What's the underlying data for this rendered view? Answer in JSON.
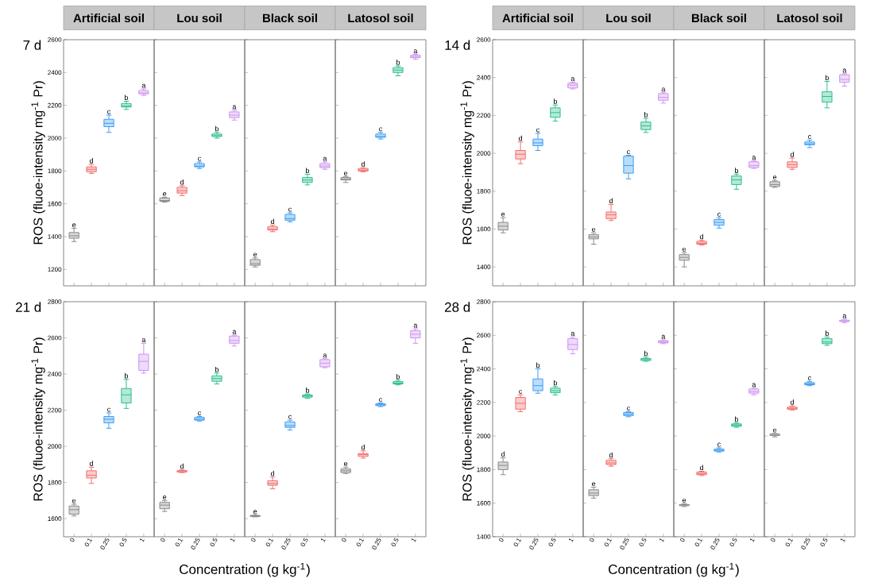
{
  "chart_data": [
    {
      "type": "box",
      "title": "Artificial soil",
      "ylabel": "ROS (fluoe-intensity mg$^{-1}$ Pr)",
      "tick_labels": "y",
      "categories": [
        "0",
        "0.1",
        "0.25",
        "0.5",
        "1"
      ],
      "colors": [
        "#8c8c8c",
        "#f26d6d",
        "#3d9df2",
        "#2dbf8a",
        "#cf94f0"
      ],
      "ylim": [
        1100,
        2600
      ],
      "yticks": [
        1200,
        1400,
        1600,
        1800,
        2000,
        2200,
        2400,
        2600
      ],
      "boxes": [
        {
          "low": 1370,
          "q1": 1390,
          "median": 1405,
          "q3": 1425,
          "high": 1450
        },
        {
          "low": 1785,
          "q1": 1795,
          "median": 1810,
          "q3": 1825,
          "high": 1840
        },
        {
          "low": 2035,
          "q1": 2070,
          "median": 2090,
          "q3": 2115,
          "high": 2140
        },
        {
          "low": 2175,
          "q1": 2190,
          "median": 2195,
          "q3": 2210,
          "high": 2225
        },
        {
          "low": 2260,
          "q1": 2270,
          "median": 2275,
          "q3": 2290,
          "high": 2300
        }
      ],
      "annotations": [
        "7 d",
        {
          "text": "e",
          "x": "0",
          "y": 1450
        },
        {
          "text": "d",
          "x": "0.1",
          "y": 1840
        },
        {
          "text": "c",
          "x": "0.25",
          "y": 2140
        },
        {
          "text": "b",
          "x": "0.5",
          "y": 2225
        },
        {
          "text": "a",
          "x": "1",
          "y": 2300
        }
      ]
    },
    {
      "type": "box",
      "title": "Lou soil",
      "tick_labels": false,
      "categories": [
        "0",
        "0.1",
        "0.25",
        "0.5",
        "1"
      ],
      "colors": [
        "#8c8c8c",
        "#f26d6d",
        "#3d9df2",
        "#2dbf8a",
        "#cf94f0"
      ],
      "ylim": [
        1100,
        2600
      ],
      "yticks": [
        1200,
        1400,
        1600,
        1800,
        2000,
        2200,
        2400,
        2600
      ],
      "boxes": [
        {
          "low": 1610,
          "q1": 1615,
          "median": 1620,
          "q3": 1635,
          "high": 1640
        },
        {
          "low": 1650,
          "q1": 1665,
          "median": 1680,
          "q3": 1700,
          "high": 1710
        },
        {
          "low": 1815,
          "q1": 1825,
          "median": 1830,
          "q3": 1845,
          "high": 1855
        },
        {
          "low": 2000,
          "q1": 2010,
          "median": 2015,
          "q3": 2025,
          "high": 2035
        },
        {
          "low": 2110,
          "q1": 2125,
          "median": 2140,
          "q3": 2160,
          "high": 2170
        }
      ],
      "annotations": [
        {
          "text": "e",
          "x": "0",
          "y": 1640
        },
        {
          "text": "d",
          "x": "0.1",
          "y": 1710
        },
        {
          "text": "c",
          "x": "0.25",
          "y": 1855
        },
        {
          "text": "b",
          "x": "0.5",
          "y": 2035
        },
        {
          "text": "a",
          "x": "1",
          "y": 2170
        }
      ]
    },
    {
      "type": "box",
      "title": "Black soil",
      "tick_labels": false,
      "categories": [
        "0",
        "0.1",
        "0.25",
        "0.5",
        "1"
      ],
      "colors": [
        "#8c8c8c",
        "#f26d6d",
        "#3d9df2",
        "#2dbf8a",
        "#cf94f0"
      ],
      "ylim": [
        1100,
        2600
      ],
      "yticks": [
        1200,
        1400,
        1600,
        1800,
        2000,
        2200,
        2400,
        2600
      ],
      "boxes": [
        {
          "low": 1215,
          "q1": 1225,
          "median": 1235,
          "q3": 1260,
          "high": 1270
        },
        {
          "low": 1430,
          "q1": 1440,
          "median": 1445,
          "q3": 1460,
          "high": 1470
        },
        {
          "low": 1490,
          "q1": 1500,
          "median": 1510,
          "q3": 1535,
          "high": 1545
        },
        {
          "low": 1715,
          "q1": 1730,
          "median": 1745,
          "q3": 1760,
          "high": 1780
        },
        {
          "low": 1810,
          "q1": 1820,
          "median": 1830,
          "q3": 1845,
          "high": 1855
        }
      ],
      "annotations": [
        {
          "text": "e",
          "x": "0",
          "y": 1270
        },
        {
          "text": "d",
          "x": "0.1",
          "y": 1470
        },
        {
          "text": "c",
          "x": "0.25",
          "y": 1545
        },
        {
          "text": "b",
          "x": "0.5",
          "y": 1780
        },
        {
          "text": "a",
          "x": "1",
          "y": 1855
        }
      ]
    },
    {
      "type": "box",
      "title": "Latosol soil",
      "tick_labels": false,
      "categories": [
        "0",
        "0.1",
        "0.25",
        "0.5",
        "1"
      ],
      "colors": [
        "#8c8c8c",
        "#f26d6d",
        "#3d9df2",
        "#2dbf8a",
        "#cf94f0"
      ],
      "ylim": [
        1100,
        2600
      ],
      "yticks": [
        1200,
        1400,
        1600,
        1800,
        2000,
        2200,
        2400,
        2600
      ],
      "boxes": [
        {
          "low": 1730,
          "q1": 1745,
          "median": 1750,
          "q3": 1760,
          "high": 1765
        },
        {
          "low": 1795,
          "q1": 1800,
          "median": 1805,
          "q3": 1815,
          "high": 1820
        },
        {
          "low": 1995,
          "q1": 2005,
          "median": 2010,
          "q3": 2025,
          "high": 2035
        },
        {
          "low": 2380,
          "q1": 2400,
          "median": 2415,
          "q3": 2430,
          "high": 2440
        },
        {
          "low": 2480,
          "q1": 2490,
          "median": 2495,
          "q3": 2505,
          "high": 2510
        }
      ],
      "annotations": [
        {
          "text": "e",
          "x": "0",
          "y": 1765
        },
        {
          "text": "d",
          "x": "0.1",
          "y": 1820
        },
        {
          "text": "c",
          "x": "0.25",
          "y": 2035
        },
        {
          "text": "b",
          "x": "0.5",
          "y": 2440
        },
        {
          "text": "a",
          "x": "1",
          "y": 2510
        }
      ]
    },
    {
      "type": "box",
      "title": "Artificial soil",
      "ylabel": "ROS (fluoe-intensity mg$^{-1}$ Pr)",
      "tick_labels": "y",
      "categories": [
        "0",
        "0.1",
        "0.25",
        "0.5",
        "1"
      ],
      "colors": [
        "#8c8c8c",
        "#f26d6d",
        "#3d9df2",
        "#2dbf8a",
        "#cf94f0"
      ],
      "ylim": [
        1300,
        2600
      ],
      "yticks": [
        1400,
        1600,
        1800,
        2000,
        2200,
        2400,
        2600
      ],
      "boxes": [
        {
          "low": 1580,
          "q1": 1595,
          "median": 1615,
          "q3": 1635,
          "high": 1660
        },
        {
          "low": 1945,
          "q1": 1970,
          "median": 1995,
          "q3": 2015,
          "high": 2060
        },
        {
          "low": 2015,
          "q1": 2040,
          "median": 2055,
          "q3": 2075,
          "high": 2105
        },
        {
          "low": 2170,
          "q1": 2190,
          "median": 2215,
          "q3": 2240,
          "high": 2255
        },
        {
          "low": 2340,
          "q1": 2345,
          "median": 2360,
          "q3": 2370,
          "high": 2375
        }
      ],
      "annotations": [
        "14 d",
        {
          "text": "e",
          "x": "0",
          "y": 1660
        },
        {
          "text": "d",
          "x": "0.1",
          "y": 2060
        },
        {
          "text": "c",
          "x": "0.25",
          "y": 2105
        },
        {
          "text": "b",
          "x": "0.5",
          "y": 2255
        },
        {
          "text": "a",
          "x": "1",
          "y": 2375
        }
      ]
    },
    {
      "type": "box",
      "title": "Lou soil",
      "tick_labels": false,
      "categories": [
        "0",
        "0.1",
        "0.25",
        "0.5",
        "1"
      ],
      "colors": [
        "#8c8c8c",
        "#f26d6d",
        "#3d9df2",
        "#2dbf8a",
        "#cf94f0"
      ],
      "ylim": [
        1300,
        2600
      ],
      "yticks": [
        1400,
        1600,
        1800,
        2000,
        2200,
        2400,
        2600
      ],
      "boxes": [
        {
          "low": 1520,
          "q1": 1548,
          "median": 1558,
          "q3": 1570,
          "high": 1580
        },
        {
          "low": 1645,
          "q1": 1655,
          "median": 1675,
          "q3": 1690,
          "high": 1730
        },
        {
          "low": 1865,
          "q1": 1895,
          "median": 1935,
          "q3": 1985,
          "high": 1990
        },
        {
          "low": 2110,
          "q1": 2125,
          "median": 2145,
          "q3": 2165,
          "high": 2185
        },
        {
          "low": 2265,
          "q1": 2280,
          "median": 2295,
          "q3": 2315,
          "high": 2320
        }
      ],
      "annotations": [
        {
          "text": "e",
          "x": "0",
          "y": 1580
        },
        {
          "text": "d",
          "x": "0.1",
          "y": 1730
        },
        {
          "text": "c",
          "x": "0.25",
          "y": 1990
        },
        {
          "text": "b",
          "x": "0.5",
          "y": 2185
        },
        {
          "text": "a",
          "x": "1",
          "y": 2320
        }
      ]
    },
    {
      "type": "box",
      "title": "Black soil",
      "tick_labels": false,
      "categories": [
        "0",
        "0.1",
        "0.25",
        "0.5",
        "1"
      ],
      "colors": [
        "#8c8c8c",
        "#f26d6d",
        "#3d9df2",
        "#2dbf8a",
        "#cf94f0"
      ],
      "ylim": [
        1300,
        2600
      ],
      "yticks": [
        1400,
        1600,
        1800,
        2000,
        2200,
        2400,
        2600
      ],
      "boxes": [
        {
          "low": 1400,
          "q1": 1435,
          "median": 1450,
          "q3": 1465,
          "high": 1475
        },
        {
          "low": 1515,
          "q1": 1520,
          "median": 1525,
          "q3": 1535,
          "high": 1540
        },
        {
          "low": 1605,
          "q1": 1620,
          "median": 1635,
          "q3": 1650,
          "high": 1660
        },
        {
          "low": 1810,
          "q1": 1835,
          "median": 1860,
          "q3": 1880,
          "high": 1890
        },
        {
          "low": 1920,
          "q1": 1925,
          "median": 1935,
          "q3": 1955,
          "high": 1960
        }
      ],
      "annotations": [
        {
          "text": "e",
          "x": "0",
          "y": 1475
        },
        {
          "text": "d",
          "x": "0.1",
          "y": 1540
        },
        {
          "text": "c",
          "x": "0.25",
          "y": 1660
        },
        {
          "text": "b",
          "x": "0.5",
          "y": 1890
        },
        {
          "text": "a",
          "x": "1",
          "y": 1960
        }
      ]
    },
    {
      "type": "box",
      "title": "Latosol soil",
      "tick_labels": false,
      "categories": [
        "0",
        "0.1",
        "0.25",
        "0.5",
        "1"
      ],
      "colors": [
        "#8c8c8c",
        "#f26d6d",
        "#3d9df2",
        "#2dbf8a",
        "#cf94f0"
      ],
      "ylim": [
        1300,
        2600
      ],
      "yticks": [
        1400,
        1600,
        1800,
        2000,
        2200,
        2400,
        2600
      ],
      "boxes": [
        {
          "low": 1820,
          "q1": 1825,
          "median": 1835,
          "q3": 1850,
          "high": 1855
        },
        {
          "low": 1915,
          "q1": 1925,
          "median": 1940,
          "q3": 1955,
          "high": 1975
        },
        {
          "low": 2030,
          "q1": 2045,
          "median": 2050,
          "q3": 2060,
          "high": 2070
        },
        {
          "low": 2240,
          "q1": 2270,
          "median": 2300,
          "q3": 2325,
          "high": 2380
        },
        {
          "low": 2355,
          "q1": 2375,
          "median": 2390,
          "q3": 2415,
          "high": 2420
        }
      ],
      "annotations": [
        {
          "text": "e",
          "x": "0",
          "y": 1855
        },
        {
          "text": "d",
          "x": "0.1",
          "y": 1975
        },
        {
          "text": "c",
          "x": "0.25",
          "y": 2070
        },
        {
          "text": "b",
          "x": "0.5",
          "y": 2380
        },
        {
          "text": "a",
          "x": "1",
          "y": 2420
        }
      ]
    },
    {
      "type": "box",
      "ylabel": "ROS (fluoe-intensity mg$^{-1}$ Pr)",
      "xlabel": "Concentration (g kg$^{-1}$)",
      "categories": [
        "0",
        "0.1",
        "0.25",
        "0.5",
        "1"
      ],
      "colors": [
        "#8c8c8c",
        "#f26d6d",
        "#3d9df2",
        "#2dbf8a",
        "#cf94f0"
      ],
      "ylim": [
        1500,
        2800
      ],
      "yticks": [
        1600,
        1800,
        2000,
        2200,
        2400,
        2600,
        2800
      ],
      "boxes": [
        {
          "low": 1615,
          "q1": 1625,
          "median": 1650,
          "q3": 1670,
          "high": 1680
        },
        {
          "low": 1795,
          "q1": 1825,
          "median": 1840,
          "q3": 1865,
          "high": 1885
        },
        {
          "low": 2100,
          "q1": 2130,
          "median": 2150,
          "q3": 2165,
          "high": 2185
        },
        {
          "low": 2210,
          "q1": 2240,
          "median": 2285,
          "q3": 2320,
          "high": 2370
        },
        {
          "low": 2405,
          "q1": 2420,
          "median": 2470,
          "q3": 2510,
          "high": 2570
        }
      ],
      "annotations": [
        "21 d",
        {
          "text": "e",
          "x": "0",
          "y": 1680
        },
        {
          "text": "d",
          "x": "0.1",
          "y": 1885
        },
        {
          "text": "c",
          "x": "0.25",
          "y": 2185
        },
        {
          "text": "b",
          "x": "0.5",
          "y": 2370
        },
        {
          "text": "a",
          "x": "1",
          "y": 2570
        }
      ]
    },
    {
      "type": "box",
      "tick_labels": "x",
      "categories": [
        "0",
        "0.1",
        "0.25",
        "0.5",
        "1"
      ],
      "colors": [
        "#8c8c8c",
        "#f26d6d",
        "#3d9df2",
        "#2dbf8a",
        "#cf94f0"
      ],
      "ylim": [
        1500,
        2800
      ],
      "yticks": [
        1600,
        1800,
        2000,
        2200,
        2400,
        2600,
        2800
      ],
      "boxes": [
        {
          "low": 1640,
          "q1": 1655,
          "median": 1675,
          "q3": 1690,
          "high": 1700
        },
        {
          "low": 1855,
          "q1": 1858,
          "median": 1860,
          "q3": 1866,
          "high": 1870
        },
        {
          "low": 2140,
          "q1": 2145,
          "median": 2150,
          "q3": 2160,
          "high": 2165
        },
        {
          "low": 2345,
          "q1": 2360,
          "median": 2375,
          "q3": 2390,
          "high": 2405
        },
        {
          "low": 2555,
          "q1": 2570,
          "median": 2585,
          "q3": 2610,
          "high": 2615
        }
      ],
      "annotations": [
        {
          "text": "e",
          "x": "0",
          "y": 1700
        },
        {
          "text": "d",
          "x": "0.1",
          "y": 1870
        },
        {
          "text": "c",
          "x": "0.25",
          "y": 2165
        },
        {
          "text": "b",
          "x": "0.5",
          "y": 2405
        },
        {
          "text": "a",
          "x": "1",
          "y": 2615
        }
      ]
    },
    {
      "type": "box",
      "tick_labels": "x",
      "categories": [
        "0",
        "0.1",
        "0.25",
        "0.5",
        "1"
      ],
      "colors": [
        "#8c8c8c",
        "#f26d6d",
        "#3d9df2",
        "#2dbf8a",
        "#cf94f0"
      ],
      "ylim": [
        1500,
        2800
      ],
      "yticks": [
        1600,
        1800,
        2000,
        2200,
        2400,
        2600,
        2800
      ],
      "boxes": [
        {
          "low": 1610,
          "q1": 1612,
          "median": 1615,
          "q3": 1618,
          "high": 1620
        },
        {
          "low": 1765,
          "q1": 1785,
          "median": 1795,
          "q3": 1810,
          "high": 1830
        },
        {
          "low": 2090,
          "q1": 2105,
          "median": 2115,
          "q3": 2135,
          "high": 2145
        },
        {
          "low": 2265,
          "q1": 2272,
          "median": 2278,
          "q3": 2284,
          "high": 2290
        },
        {
          "low": 2435,
          "q1": 2440,
          "median": 2460,
          "q3": 2480,
          "high": 2485
        }
      ],
      "annotations": [
        {
          "text": "e",
          "x": "0",
          "y": 1620
        },
        {
          "text": "d",
          "x": "0.1",
          "y": 1830
        },
        {
          "text": "c",
          "x": "0.25",
          "y": 2145
        },
        {
          "text": "b",
          "x": "0.5",
          "y": 2290
        },
        {
          "text": "a",
          "x": "1",
          "y": 2485
        }
      ]
    },
    {
      "type": "box",
      "tick_labels": "x",
      "categories": [
        "0",
        "0.1",
        "0.25",
        "0.5",
        "1"
      ],
      "colors": [
        "#8c8c8c",
        "#f26d6d",
        "#3d9df2",
        "#2dbf8a",
        "#cf94f0"
      ],
      "ylim": [
        1500,
        2800
      ],
      "yticks": [
        1600,
        1800,
        2000,
        2200,
        2400,
        2600,
        2800
      ],
      "boxes": [
        {
          "low": 1850,
          "q1": 1855,
          "median": 1865,
          "q3": 1875,
          "high": 1885
        },
        {
          "low": 1935,
          "q1": 1945,
          "median": 1955,
          "q3": 1960,
          "high": 1975
        },
        {
          "low": 2220,
          "q1": 2225,
          "median": 2230,
          "q3": 2235,
          "high": 2240
        },
        {
          "low": 2340,
          "q1": 2345,
          "median": 2350,
          "q3": 2358,
          "high": 2365
        },
        {
          "low": 2570,
          "q1": 2600,
          "median": 2620,
          "q3": 2640,
          "high": 2650
        }
      ],
      "annotations": [
        {
          "text": "e",
          "x": "0",
          "y": 1885
        },
        {
          "text": "d",
          "x": "0.1",
          "y": 1975
        },
        {
          "text": "c",
          "x": "0.25",
          "y": 2240
        },
        {
          "text": "b",
          "x": "0.5",
          "y": 2365
        },
        {
          "text": "a",
          "x": "1",
          "y": 2650
        }
      ]
    },
    {
      "type": "box",
      "ylabel": "ROS (fluoe-intensity mg$^{-1}$ Pr)",
      "xlabel": "Concentration (g kg$^{-1}$)",
      "categories": [
        "0",
        "0.1",
        "0.25",
        "0.5",
        "1"
      ],
      "colors": [
        "#8c8c8c",
        "#f26d6d",
        "#3d9df2",
        "#2dbf8a",
        "#cf94f0"
      ],
      "ylim": [
        1400,
        2800
      ],
      "yticks": [
        1400,
        1600,
        1800,
        2000,
        2200,
        2400,
        2600,
        2800
      ],
      "boxes": [
        {
          "low": 1770,
          "q1": 1800,
          "median": 1825,
          "q3": 1845,
          "high": 1870
        },
        {
          "low": 2145,
          "q1": 2160,
          "median": 2195,
          "q3": 2230,
          "high": 2245
        },
        {
          "low": 2255,
          "q1": 2270,
          "median": 2300,
          "q3": 2340,
          "high": 2400
        },
        {
          "low": 2245,
          "q1": 2258,
          "median": 2270,
          "q3": 2285,
          "high": 2295
        },
        {
          "low": 2490,
          "q1": 2515,
          "median": 2545,
          "q3": 2580,
          "high": 2590
        }
      ],
      "annotations": [
        "28 d",
        {
          "text": "d",
          "x": "0",
          "y": 1870
        },
        {
          "text": "c",
          "x": "0.1",
          "y": 2245
        },
        {
          "text": "b",
          "x": "0.25",
          "y": 2400
        },
        {
          "text": "b",
          "x": "0.5",
          "y": 2295
        },
        {
          "text": "a",
          "x": "1",
          "y": 2590
        }
      ]
    },
    {
      "type": "box",
      "tick_labels": "x",
      "categories": [
        "0",
        "0.1",
        "0.25",
        "0.5",
        "1"
      ],
      "colors": [
        "#8c8c8c",
        "#f26d6d",
        "#3d9df2",
        "#2dbf8a",
        "#cf94f0"
      ],
      "ylim": [
        1400,
        2800
      ],
      "yticks": [
        1400,
        1600,
        1800,
        2000,
        2200,
        2400,
        2600,
        2800
      ],
      "boxes": [
        {
          "low": 1630,
          "q1": 1645,
          "median": 1660,
          "q3": 1680,
          "high": 1695
        },
        {
          "low": 1820,
          "q1": 1830,
          "median": 1840,
          "q3": 1855,
          "high": 1865
        },
        {
          "low": 2115,
          "q1": 2122,
          "median": 2130,
          "q3": 2140,
          "high": 2145
        },
        {
          "low": 2445,
          "q1": 2450,
          "median": 2455,
          "q3": 2462,
          "high": 2470
        },
        {
          "low": 2550,
          "q1": 2555,
          "median": 2560,
          "q3": 2568,
          "high": 2572
        }
      ],
      "annotations": [
        {
          "text": "e",
          "x": "0",
          "y": 1695
        },
        {
          "text": "d",
          "x": "0.1",
          "y": 1865
        },
        {
          "text": "c",
          "x": "0.25",
          "y": 2145
        },
        {
          "text": "b",
          "x": "0.5",
          "y": 2470
        },
        {
          "text": "a",
          "x": "1",
          "y": 2572
        }
      ]
    },
    {
      "type": "box",
      "tick_labels": "x",
      "categories": [
        "0",
        "0.1",
        "0.25",
        "0.5",
        "1"
      ],
      "colors": [
        "#8c8c8c",
        "#f26d6d",
        "#3d9df2",
        "#2dbf8a",
        "#cf94f0"
      ],
      "ylim": [
        1400,
        2800
      ],
      "yticks": [
        1400,
        1600,
        1800,
        2000,
        2200,
        2400,
        2600,
        2800
      ],
      "boxes": [
        {
          "low": 1580,
          "q1": 1585,
          "median": 1590,
          "q3": 1592,
          "high": 1597
        },
        {
          "low": 1765,
          "q1": 1770,
          "median": 1775,
          "q3": 1785,
          "high": 1790
        },
        {
          "low": 1905,
          "q1": 1910,
          "median": 1915,
          "q3": 1922,
          "high": 1930
        },
        {
          "low": 2052,
          "q1": 2058,
          "median": 2065,
          "q3": 2072,
          "high": 2078
        },
        {
          "low": 2245,
          "q1": 2255,
          "median": 2265,
          "q3": 2280,
          "high": 2285
        }
      ],
      "annotations": [
        {
          "text": "e",
          "x": "0",
          "y": 1597
        },
        {
          "text": "d",
          "x": "0.1",
          "y": 1790
        },
        {
          "text": "c",
          "x": "0.25",
          "y": 1930
        },
        {
          "text": "b",
          "x": "0.5",
          "y": 2078
        },
        {
          "text": "a",
          "x": "1",
          "y": 2285
        }
      ]
    },
    {
      "type": "box",
      "tick_labels": "x",
      "categories": [
        "0",
        "0.1",
        "0.25",
        "0.5",
        "1"
      ],
      "colors": [
        "#8c8c8c",
        "#f26d6d",
        "#3d9df2",
        "#2dbf8a",
        "#cf94f0"
      ],
      "ylim": [
        1400,
        2800
      ],
      "yticks": [
        1400,
        1600,
        1800,
        2000,
        2200,
        2400,
        2600,
        2800
      ],
      "boxes": [
        {
          "low": 1995,
          "q1": 2003,
          "median": 2005,
          "q3": 2012,
          "high": 2015
        },
        {
          "low": 2155,
          "q1": 2160,
          "median": 2165,
          "q3": 2172,
          "high": 2180
        },
        {
          "low": 2300,
          "q1": 2305,
          "median": 2310,
          "q3": 2318,
          "high": 2325
        },
        {
          "low": 2540,
          "q1": 2550,
          "median": 2560,
          "q3": 2580,
          "high": 2590
        },
        {
          "low": 2675,
          "q1": 2682,
          "median": 2685,
          "q3": 2690,
          "high": 2695
        }
      ],
      "annotations": [
        {
          "text": "e",
          "x": "0",
          "y": 2015
        },
        {
          "text": "d",
          "x": "0.1",
          "y": 2180
        },
        {
          "text": "c",
          "x": "0.25",
          "y": 2325
        },
        {
          "text": "b",
          "x": "0.5",
          "y": 2590
        },
        {
          "text": "a",
          "x": "1",
          "y": 2695
        }
      ]
    }
  ]
}
